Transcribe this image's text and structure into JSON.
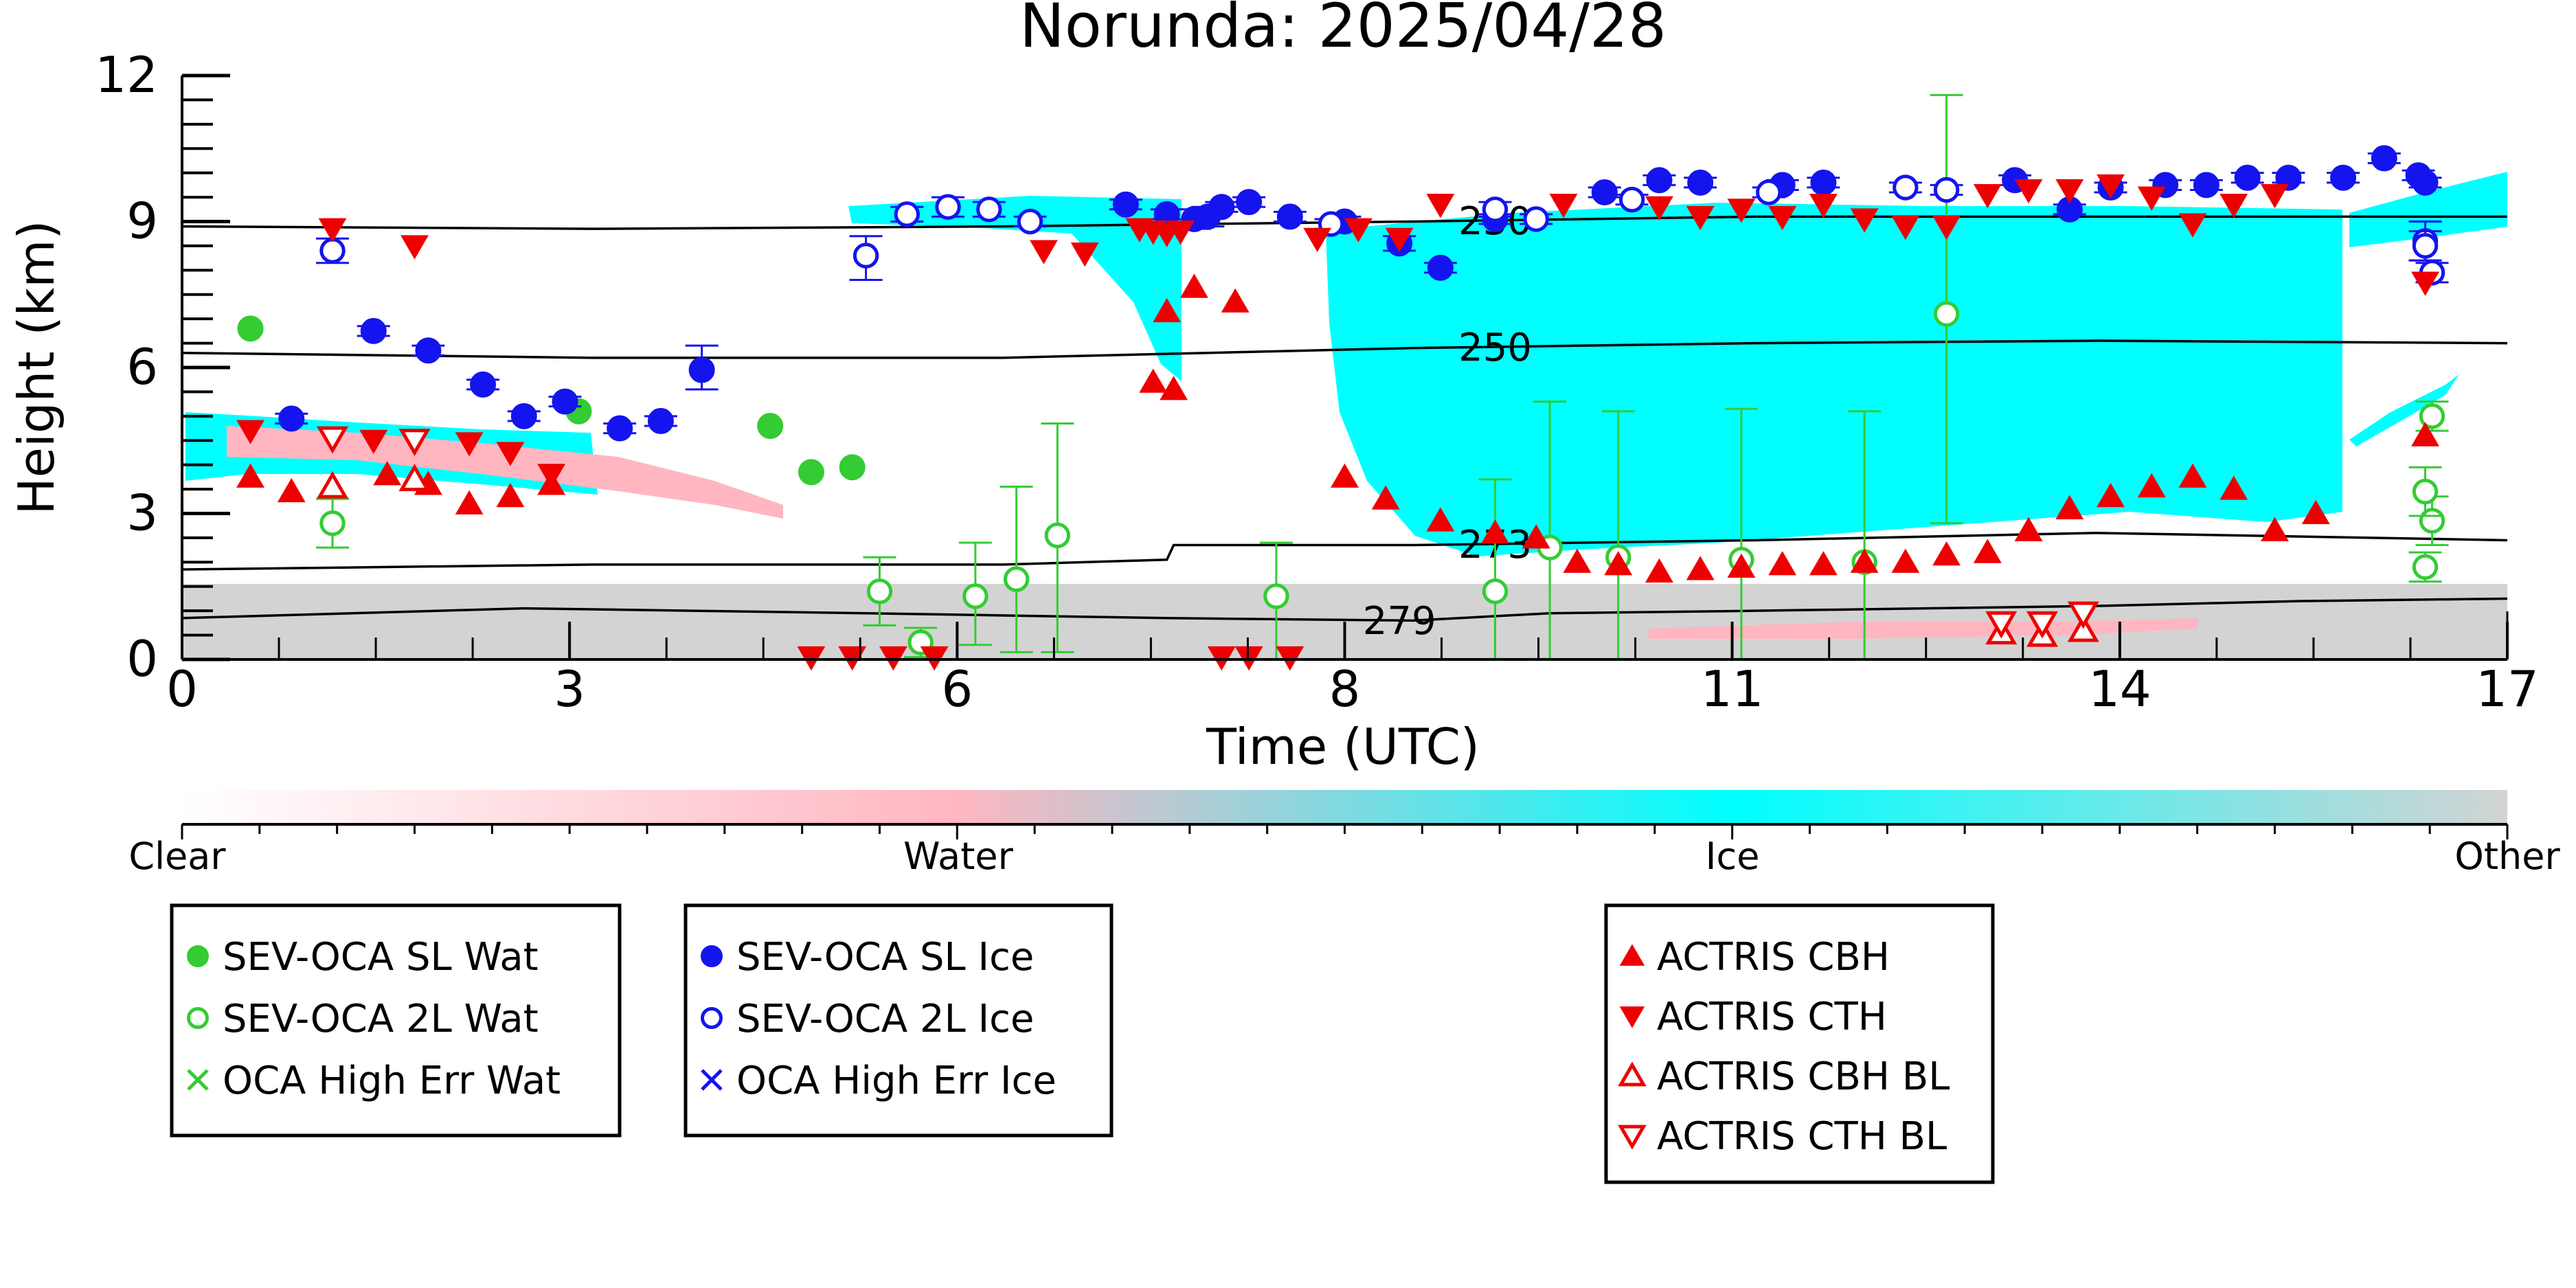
{
  "chart_data": {
    "type": "scatter",
    "title": "Norunda: 2025/04/28",
    "xlabel": "Time (UTC)",
    "ylabel": "Height (km)",
    "xlim": [
      0,
      17
    ],
    "ylim": [
      0,
      12
    ],
    "x_ticks": [
      "0",
      "3",
      "6",
      "8",
      "11",
      "14",
      "17"
    ],
    "x_tick_values": [
      0,
      2.833,
      5.667,
      8.5,
      11.333,
      14.167,
      17
    ],
    "y_ticks": [
      "0",
      "3",
      "6",
      "9",
      "12"
    ],
    "y_tick_values": [
      0,
      3,
      6,
      9,
      12
    ],
    "colorbar": {
      "labels": [
        "Clear",
        "Water",
        "Ice",
        "Other"
      ],
      "colors": [
        "#ffffff",
        "#ffb6c1",
        "#00ffff",
        "#d3d3d3"
      ]
    },
    "isotherms": [
      {
        "label": "230",
        "x": [
          0,
          3,
          6,
          9,
          11.5,
          14,
          17
        ],
        "y": [
          8.9,
          8.85,
          8.9,
          9.0,
          9.1,
          9.1,
          9.1
        ]
      },
      {
        "label": "250",
        "x": [
          0,
          3,
          6,
          9,
          11.5,
          14,
          17
        ],
        "y": [
          6.3,
          6.2,
          6.2,
          6.4,
          6.5,
          6.55,
          6.5
        ]
      },
      {
        "label": "273",
        "x": [
          0,
          3,
          6,
          7.2,
          7.25,
          9,
          11.5,
          14,
          17
        ],
        "y": [
          1.85,
          1.95,
          1.95,
          2.05,
          2.35,
          2.35,
          2.45,
          2.6,
          2.45
        ]
      },
      {
        "label": "279",
        "x": [
          0,
          2.5,
          5,
          7.2,
          9,
          10,
          11.5,
          14,
          15.5,
          17
        ],
        "y": [
          0.85,
          1.05,
          0.95,
          0.85,
          0.8,
          0.95,
          1.0,
          1.1,
          1.2,
          1.25
        ]
      }
    ],
    "series": [
      {
        "name": "SEV-OCA SL Wat",
        "color": "#33cc33",
        "marker": "circle-filled",
        "x": [
          0.5,
          2.9,
          4.3,
          4.6,
          4.9
        ],
        "y": [
          6.8,
          5.1,
          4.8,
          3.85,
          3.95
        ]
      },
      {
        "name": "SEV-OCA 2L Wat",
        "color": "#33cc33",
        "marker": "circle-open",
        "x": [
          1.1,
          5.1,
          5.4,
          5.8,
          6.1,
          6.4,
          8.0,
          9.6,
          10.0,
          10.5,
          11.4,
          12.3,
          12.9,
          16.4,
          16.45,
          16.4,
          16.45
        ],
        "y": [
          2.8,
          1.4,
          0.35,
          1.3,
          1.65,
          2.55,
          1.3,
          1.4,
          2.3,
          2.1,
          2.05,
          2.0,
          7.1,
          1.9,
          2.85,
          3.45,
          5.0
        ],
        "yerr_low": [
          0.5,
          0.7,
          0.3,
          1.0,
          1.5,
          2.4,
          1.3,
          1.4,
          2.3,
          2.1,
          2.05,
          2.0,
          4.3,
          0.3,
          0.5,
          0.5,
          0.3
        ],
        "yerr_high": [
          0.5,
          0.7,
          0.3,
          1.1,
          1.9,
          2.3,
          1.1,
          2.3,
          3.0,
          3.0,
          3.1,
          3.1,
          4.5,
          0.3,
          0.5,
          0.5,
          0.3
        ]
      },
      {
        "name": "OCA High Err Wat",
        "color": "#33cc33",
        "marker": "x",
        "x": [],
        "y": []
      },
      {
        "name": "SEV-OCA SL Ice",
        "color": "#1414ee",
        "marker": "circle-filled",
        "x": [
          0.8,
          1.4,
          1.8,
          2.2,
          2.5,
          2.8,
          3.2,
          3.5,
          3.8,
          6.9,
          7.2,
          7.4,
          7.5,
          7.6,
          7.8,
          8.1,
          8.5,
          8.9,
          9.2,
          9.6,
          10.4,
          10.8,
          11.1,
          11.7,
          12.0,
          13.4,
          13.8,
          14.1,
          14.5,
          14.8,
          15.1,
          15.4,
          15.8,
          16.1,
          16.35,
          16.4
        ],
        "y": [
          4.95,
          6.75,
          6.35,
          5.65,
          5.0,
          5.3,
          4.75,
          4.9,
          5.95,
          9.35,
          9.15,
          9.05,
          9.1,
          9.3,
          9.4,
          9.1,
          9.0,
          8.55,
          8.05,
          9.05,
          9.6,
          9.85,
          9.8,
          9.75,
          9.8,
          9.85,
          9.25,
          9.7,
          9.75,
          9.75,
          9.9,
          9.9,
          9.9,
          10.3,
          9.95,
          9.8
        ],
        "yerr_low": [
          0.1,
          0.1,
          0.1,
          0.1,
          0.1,
          0.1,
          0.1,
          0.1,
          0.4,
          0.1,
          0.1,
          0.2,
          0.2,
          0.1,
          0.1,
          0.1,
          0.1,
          0.15,
          0.1,
          0.1,
          0.1,
          0.1,
          0.1,
          0.1,
          0.1,
          0.1,
          0.1,
          0.1,
          0.1,
          0.1,
          0.1,
          0.1,
          0.1,
          0.1,
          0.1,
          0.1
        ],
        "yerr_high": [
          0.1,
          0.1,
          0.1,
          0.1,
          0.1,
          0.1,
          0.1,
          0.1,
          0.5,
          0.1,
          0.1,
          0.2,
          0.2,
          0.1,
          0.1,
          0.1,
          0.1,
          0.15,
          0.1,
          0.1,
          0.1,
          0.1,
          0.1,
          0.1,
          0.1,
          0.1,
          0.1,
          0.1,
          0.1,
          0.1,
          0.1,
          0.1,
          0.1,
          0.1,
          0.1,
          0.1
        ]
      },
      {
        "name": "SEV-OCA 2L Ice",
        "color": "#1414ee",
        "marker": "circle-open",
        "x": [
          1.1,
          5.0,
          5.3,
          5.6,
          5.9,
          6.2,
          8.4,
          9.6,
          9.9,
          10.6,
          11.6,
          12.6,
          12.9,
          16.4,
          16.4,
          16.45
        ],
        "y": [
          8.4,
          8.3,
          9.15,
          9.3,
          9.25,
          9.0,
          8.95,
          9.25,
          9.05,
          9.45,
          9.6,
          9.7,
          9.65,
          8.6,
          8.5,
          7.95
        ],
        "yerr_low": [
          0.25,
          0.5,
          0.15,
          0.2,
          0.15,
          0.1,
          0.1,
          0.15,
          0.1,
          0.1,
          0.1,
          0.1,
          0.1,
          0.4,
          0.3,
          0.2
        ],
        "yerr_high": [
          0.25,
          0.4,
          0.15,
          0.2,
          0.15,
          0.1,
          0.1,
          0.15,
          0.1,
          0.1,
          0.1,
          0.1,
          0.1,
          0.4,
          0.3,
          0.2
        ]
      },
      {
        "name": "OCA High Err Ice",
        "color": "#1414ee",
        "marker": "x",
        "x": [],
        "y": []
      },
      {
        "name": "ACTRIS CBH",
        "color": "#ee0000",
        "marker": "triangle-up",
        "x": [
          0.5,
          0.8,
          1.1,
          1.5,
          1.8,
          2.1,
          2.4,
          2.7,
          7.1,
          7.25,
          7.2,
          7.4,
          7.7,
          8.5,
          8.8,
          9.2,
          9.6,
          9.9,
          10.2,
          10.5,
          10.8,
          11.1,
          11.4,
          11.7,
          12.0,
          12.3,
          12.6,
          12.9,
          13.2,
          13.5,
          13.8,
          14.1,
          14.4,
          14.7,
          15.0,
          15.3,
          15.6,
          16.4
        ],
        "y": [
          3.75,
          3.45,
          3.55,
          3.8,
          3.6,
          3.2,
          3.35,
          3.6,
          5.7,
          5.55,
          7.15,
          7.65,
          7.35,
          3.75,
          3.3,
          2.85,
          2.6,
          2.5,
          2.0,
          1.95,
          1.8,
          1.85,
          1.9,
          1.95,
          1.95,
          2.0,
          2.0,
          2.15,
          2.2,
          2.65,
          3.1,
          3.35,
          3.55,
          3.75,
          3.5,
          2.65,
          3.0,
          4.6
        ]
      },
      {
        "name": "ACTRIS CTH",
        "color": "#ee0000",
        "marker": "triangle-down",
        "x": [
          0.5,
          1.1,
          1.4,
          1.7,
          2.1,
          2.4,
          2.7,
          4.6,
          4.9,
          5.2,
          5.5,
          6.3,
          6.6,
          7.0,
          7.1,
          7.2,
          7.3,
          7.6,
          7.8,
          8.1,
          8.3,
          8.6,
          8.9,
          9.2,
          10.1,
          10.8,
          11.1,
          11.4,
          11.7,
          12.0,
          12.3,
          12.6,
          12.9,
          13.2,
          13.5,
          13.8,
          14.1,
          14.4,
          14.7,
          15.0,
          15.3,
          16.4
        ],
        "y": [
          4.7,
          8.85,
          4.5,
          8.5,
          4.45,
          4.25,
          3.8,
          0.05,
          0.05,
          0.05,
          0.05,
          8.4,
          8.35,
          8.85,
          8.8,
          8.75,
          8.8,
          0.05,
          0.05,
          0.05,
          8.65,
          8.85,
          8.65,
          9.35,
          9.35,
          9.3,
          9.1,
          9.25,
          9.1,
          9.35,
          9.05,
          8.9,
          8.9,
          9.55,
          9.65,
          9.65,
          9.75,
          9.5,
          8.95,
          9.35,
          9.55,
          7.75
        ]
      },
      {
        "name": "ACTRIS CBH BL",
        "color": "#ee0000",
        "marker": "triangle-up-open",
        "x": [
          1.1,
          1.7,
          13.3,
          13.6,
          13.9
        ],
        "y": [
          3.55,
          3.7,
          0.55,
          0.5,
          0.6
        ]
      },
      {
        "name": "ACTRIS CTH BL",
        "color": "#ee0000",
        "marker": "triangle-down-open",
        "x": [
          1.1,
          1.7,
          13.3,
          13.6,
          13.9
        ],
        "y": [
          4.55,
          4.5,
          0.75,
          0.75,
          0.95
        ]
      }
    ],
    "legend_groups": [
      [
        "SEV-OCA SL Wat",
        "SEV-OCA 2L Wat",
        "OCA High Err Wat"
      ],
      [
        "SEV-OCA SL Ice",
        "SEV-OCA 2L Ice",
        "OCA High Err Ice"
      ],
      [
        "ACTRIS CBH",
        "ACTRIS CTH",
        "ACTRIS CBH BL",
        "ACTRIS CTH BL"
      ]
    ],
    "legend_placement": "below",
    "grid": false
  }
}
